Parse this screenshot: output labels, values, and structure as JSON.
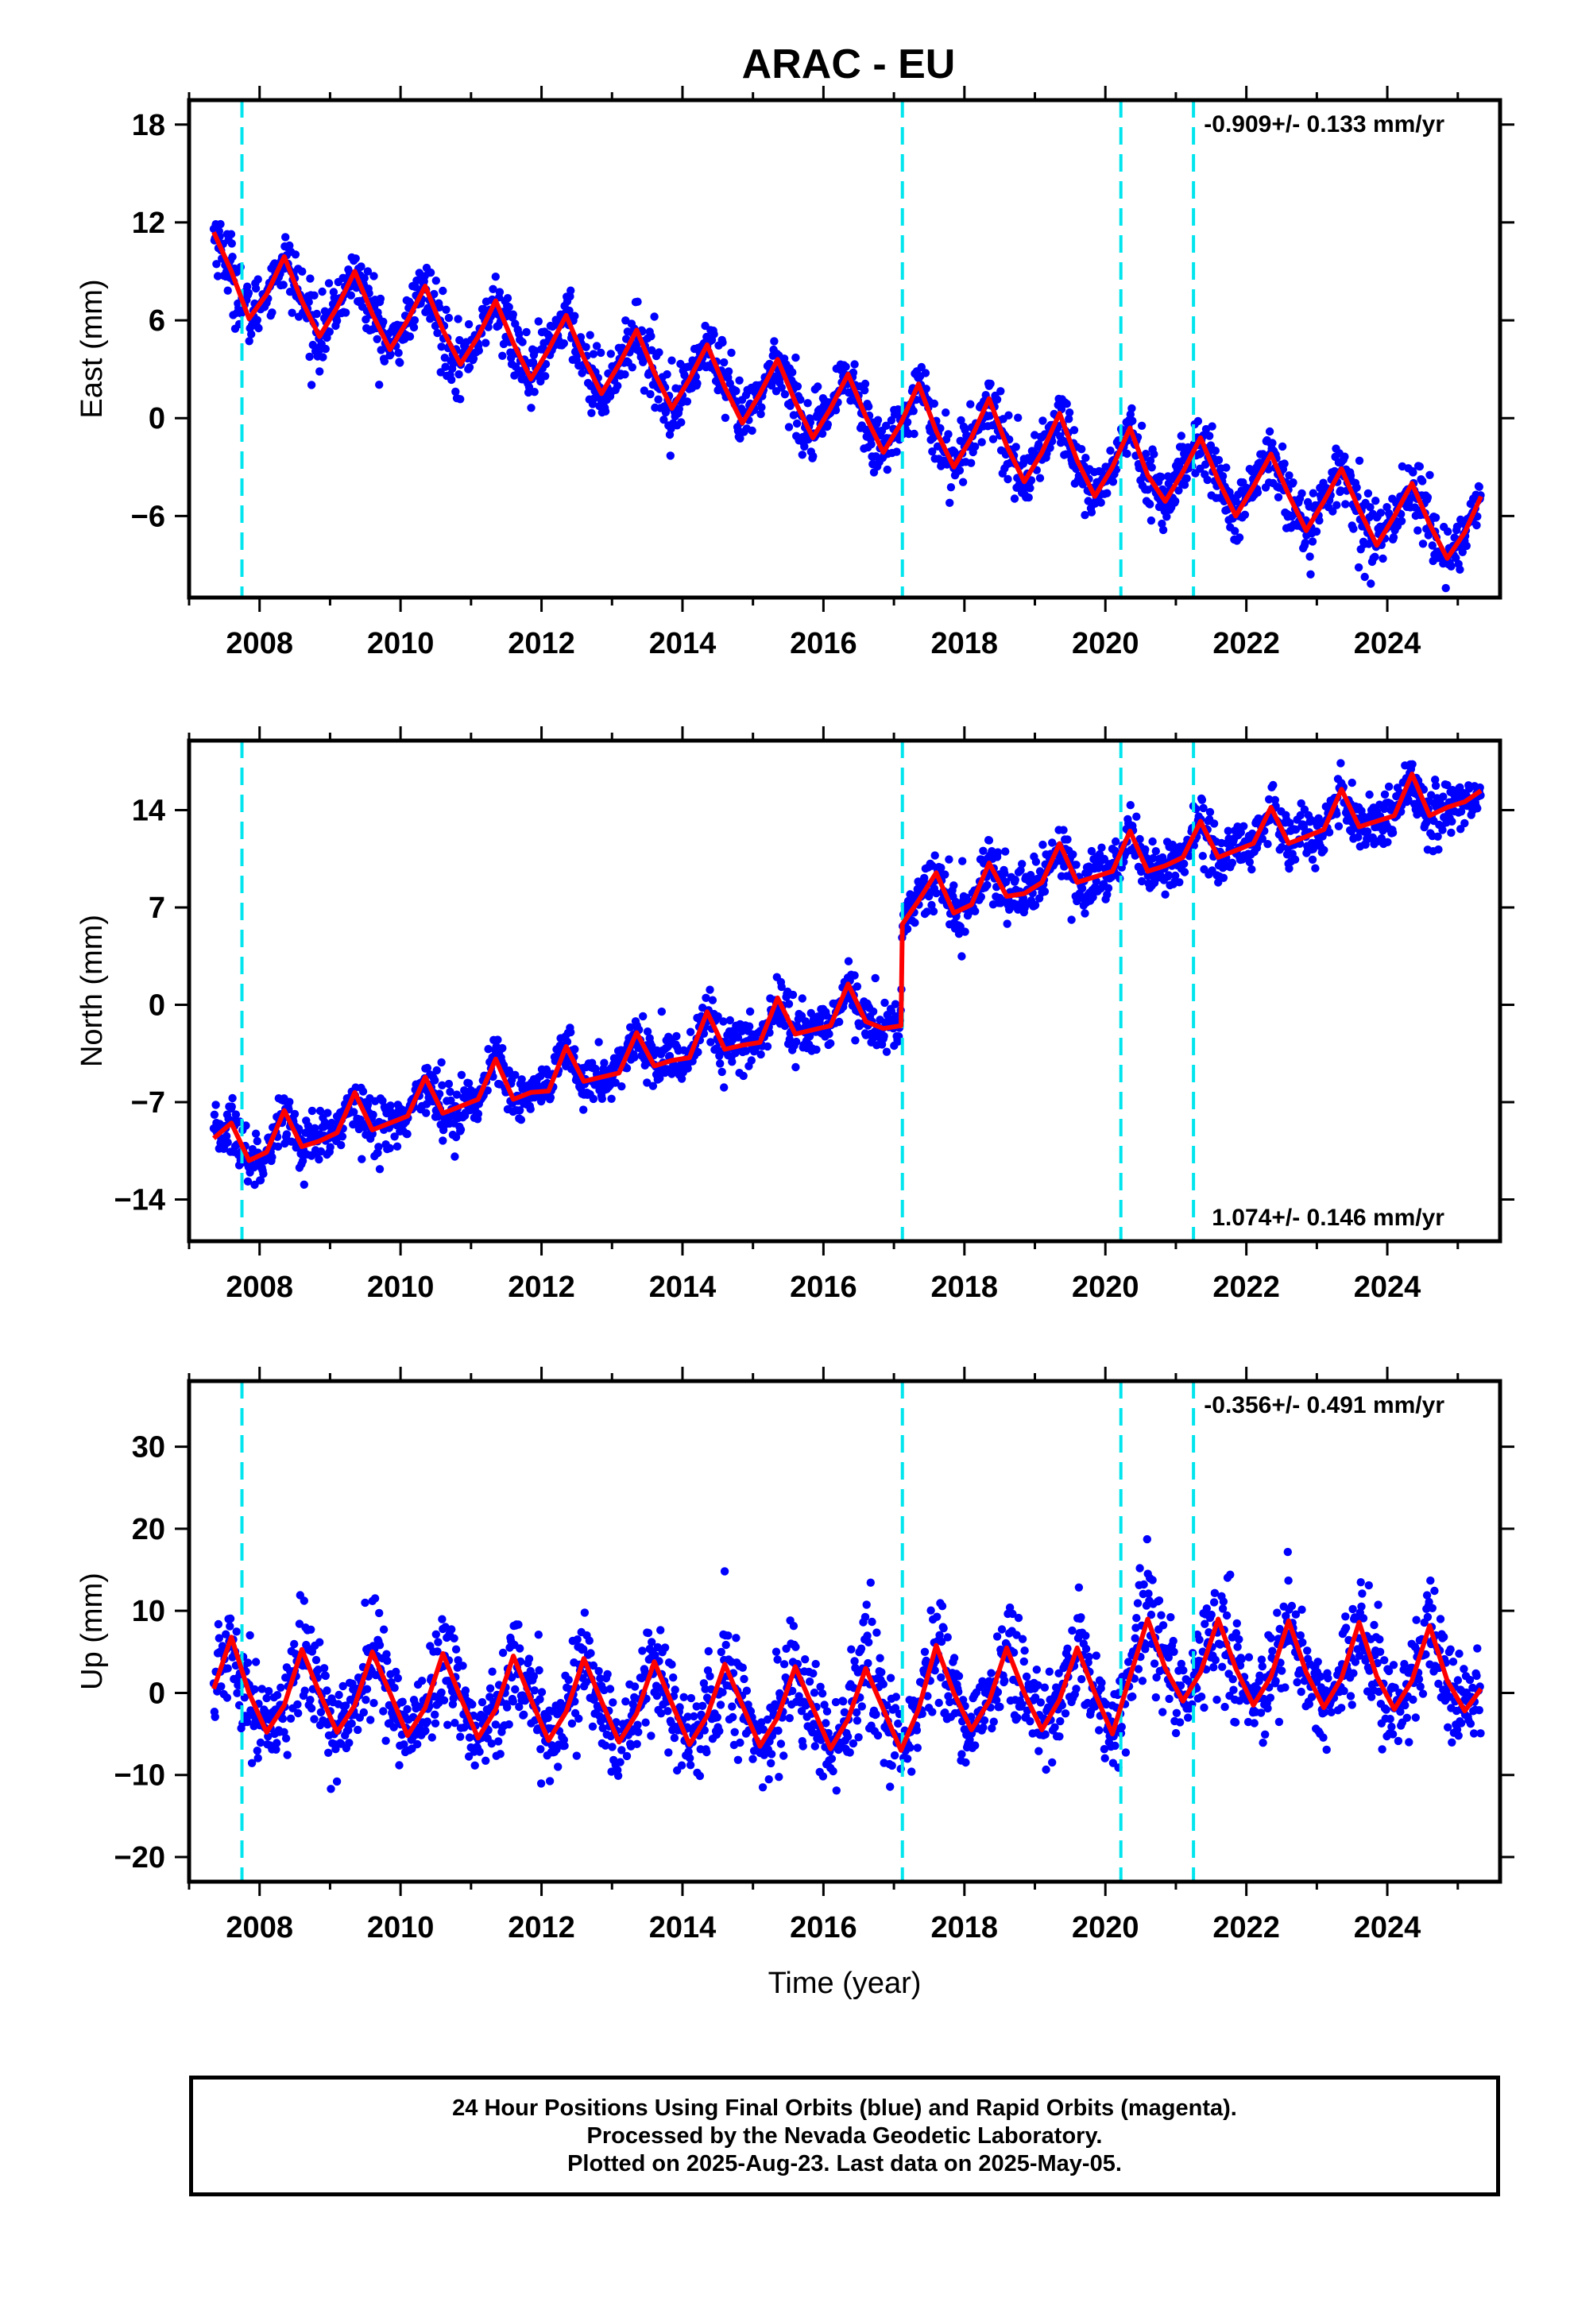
{
  "title": "ARAC - EU",
  "footer": {
    "line1": "24 Hour Positions Using Final Orbits (blue) and Rapid Orbits (magenta).",
    "line2": "Processed by the Nevada Geodetic Laboratory.",
    "line3": "Plotted on 2025-Aug-23. Last data on 2025-May-05."
  },
  "colors": {
    "final_orbits": "#0000ff",
    "rapid_orbits": "#ff00ff",
    "model_fit": "#ff0000",
    "equipment_change": "#00e5ee",
    "background": "#ffffff"
  },
  "chart_data": [
    {
      "type": "scatter",
      "component": "east",
      "title": "ARAC - EU",
      "ylabel": "East (mm)",
      "xlabel": "",
      "xlim": [
        2007.0,
        2025.6
      ],
      "ylim": [
        -11,
        19.5
      ],
      "yticks": [
        18,
        12,
        6,
        0,
        -6
      ],
      "xticks": [
        2008,
        2010,
        2012,
        2014,
        2016,
        2018,
        2020,
        2022,
        2024
      ],
      "rate_label": "-0.909+/- 0.133 mm/yr",
      "rate_position": "top-right",
      "equipment_changes": [
        2007.75,
        2017.12,
        2020.22,
        2021.25
      ],
      "series_fit": {
        "x": [
          2007.35,
          2007.6,
          2007.85,
          2008.1,
          2008.35,
          2008.6,
          2008.85,
          2009.1,
          2009.35,
          2009.6,
          2009.85,
          2010.1,
          2010.35,
          2010.6,
          2010.85,
          2011.1,
          2011.35,
          2011.6,
          2011.85,
          2012.1,
          2012.35,
          2012.6,
          2012.85,
          2013.1,
          2013.35,
          2013.6,
          2013.85,
          2014.1,
          2014.35,
          2014.6,
          2014.85,
          2015.1,
          2015.35,
          2015.6,
          2015.85,
          2016.1,
          2016.35,
          2016.6,
          2016.85,
          2017.1,
          2017.35,
          2017.6,
          2017.85,
          2018.1,
          2018.35,
          2018.6,
          2018.85,
          2019.1,
          2019.35,
          2019.6,
          2019.85,
          2020.1,
          2020.35,
          2020.6,
          2020.85,
          2021.1,
          2021.35,
          2021.6,
          2021.85,
          2022.1,
          2022.35,
          2022.6,
          2022.85,
          2023.1,
          2023.35,
          2023.6,
          2023.85,
          2024.1,
          2024.35,
          2024.6,
          2024.85,
          2025.1,
          2025.33
        ],
        "y": [
          11.4,
          9.0,
          6.1,
          7.6,
          9.9,
          7.2,
          5.0,
          6.8,
          9.0,
          6.4,
          4.2,
          6.0,
          8.1,
          5.4,
          3.3,
          5.0,
          7.2,
          4.6,
          2.4,
          4.2,
          6.3,
          3.7,
          1.5,
          3.3,
          5.4,
          2.8,
          0.6,
          2.4,
          4.5,
          1.9,
          -0.3,
          1.5,
          3.6,
          1.0,
          -1.2,
          0.6,
          2.7,
          0.1,
          -2.1,
          -0.3,
          2.1,
          -0.8,
          -3.0,
          -1.2,
          1.2,
          -1.7,
          -3.9,
          -2.1,
          0.3,
          -2.6,
          -4.8,
          -3.0,
          -0.6,
          -3.5,
          -5.1,
          -3.3,
          -1.2,
          -3.8,
          -6.0,
          -4.2,
          -2.2,
          -4.7,
          -6.9,
          -5.1,
          -3.1,
          -5.6,
          -7.8,
          -6.0,
          -4.0,
          -6.5,
          -8.6,
          -7.0,
          -4.8
        ]
      }
    },
    {
      "type": "scatter",
      "component": "north",
      "title": "",
      "ylabel": "North (mm)",
      "xlabel": "",
      "xlim": [
        2007.0,
        2025.6
      ],
      "ylim": [
        -17,
        19
      ],
      "yticks": [
        14,
        7,
        0,
        -7,
        -14
      ],
      "xticks": [
        2008,
        2010,
        2012,
        2014,
        2016,
        2018,
        2020,
        2022,
        2024
      ],
      "rate_label": "1.074+/- 0.146 mm/yr",
      "rate_position": "bottom-right",
      "equipment_changes": [
        2007.75,
        2017.12,
        2020.22,
        2021.25
      ],
      "series_fit": {
        "x": [
          2007.35,
          2007.6,
          2007.85,
          2008.1,
          2008.35,
          2008.6,
          2008.85,
          2009.1,
          2009.35,
          2009.6,
          2009.85,
          2010.1,
          2010.35,
          2010.6,
          2010.85,
          2011.1,
          2011.35,
          2011.6,
          2011.85,
          2012.1,
          2012.35,
          2012.6,
          2012.85,
          2013.1,
          2013.35,
          2013.6,
          2013.85,
          2014.1,
          2014.35,
          2014.6,
          2014.85,
          2015.1,
          2015.35,
          2015.6,
          2015.85,
          2016.1,
          2016.35,
          2016.6,
          2016.85,
          2017.1,
          2017.12,
          2017.35,
          2017.6,
          2017.85,
          2018.1,
          2018.35,
          2018.6,
          2018.85,
          2019.1,
          2019.35,
          2019.6,
          2019.85,
          2020.1,
          2020.35,
          2020.6,
          2020.85,
          2021.1,
          2021.35,
          2021.6,
          2021.85,
          2022.1,
          2022.35,
          2022.6,
          2022.85,
          2023.1,
          2023.35,
          2023.6,
          2023.85,
          2024.1,
          2024.35,
          2024.6,
          2024.85,
          2025.1,
          2025.33
        ],
        "y": [
          -9.6,
          -8.5,
          -11.2,
          -10.6,
          -7.6,
          -10.2,
          -9.8,
          -9.2,
          -6.3,
          -9.0,
          -8.5,
          -8.0,
          -5.2,
          -7.8,
          -7.3,
          -6.8,
          -3.9,
          -6.8,
          -6.3,
          -6.2,
          -3.0,
          -5.5,
          -5.2,
          -4.9,
          -2.0,
          -4.4,
          -4.0,
          -3.8,
          -0.5,
          -3.2,
          -2.9,
          -2.7,
          0.5,
          -2.1,
          -1.8,
          -1.5,
          1.5,
          -1.2,
          -1.7,
          -1.5,
          5.8,
          7.5,
          9.5,
          6.6,
          7.2,
          10.2,
          7.8,
          8.0,
          8.8,
          11.6,
          8.8,
          9.2,
          9.6,
          12.5,
          9.6,
          10.0,
          10.6,
          13.2,
          10.6,
          11.1,
          11.6,
          14.2,
          11.6,
          12.1,
          12.6,
          15.5,
          12.8,
          13.2,
          13.6,
          16.6,
          13.6,
          14.2,
          14.6,
          15.4
        ]
      }
    },
    {
      "type": "scatter",
      "component": "up",
      "title": "",
      "ylabel": "Up (mm)",
      "xlabel": "Time (year)",
      "xlim": [
        2007.0,
        2025.6
      ],
      "ylim": [
        -23,
        38
      ],
      "yticks": [
        30,
        20,
        10,
        0,
        -10,
        -20
      ],
      "xticks": [
        2008,
        2010,
        2012,
        2014,
        2016,
        2018,
        2020,
        2022,
        2024
      ],
      "rate_label": "-0.356+/- 0.491 mm/yr",
      "rate_position": "top-right",
      "equipment_changes": [
        2007.75,
        2017.12,
        2020.22,
        2021.25
      ],
      "series_fit": {
        "x": [
          2007.35,
          2007.6,
          2007.85,
          2008.1,
          2008.35,
          2008.6,
          2008.85,
          2009.1,
          2009.35,
          2009.6,
          2009.85,
          2010.1,
          2010.35,
          2010.6,
          2010.85,
          2011.1,
          2011.35,
          2011.6,
          2011.85,
          2012.1,
          2012.35,
          2012.6,
          2012.85,
          2013.1,
          2013.35,
          2013.6,
          2013.85,
          2014.1,
          2014.35,
          2014.6,
          2014.85,
          2015.1,
          2015.35,
          2015.6,
          2015.85,
          2016.1,
          2016.35,
          2016.6,
          2016.85,
          2017.1,
          2017.35,
          2017.6,
          2017.85,
          2018.1,
          2018.35,
          2018.6,
          2018.85,
          2019.1,
          2019.35,
          2019.6,
          2019.85,
          2020.1,
          2020.35,
          2020.6,
          2020.85,
          2021.1,
          2021.35,
          2021.6,
          2021.85,
          2022.1,
          2022.35,
          2022.6,
          2022.85,
          2023.1,
          2023.35,
          2023.6,
          2023.85,
          2024.1,
          2024.35,
          2024.6,
          2024.85,
          2025.1,
          2025.33
        ],
        "y": [
          0.5,
          6.8,
          0.0,
          -4.8,
          -1.5,
          5.3,
          0.0,
          -4.8,
          -1.5,
          5.0,
          0.0,
          -5.2,
          -1.8,
          4.8,
          -0.5,
          -5.5,
          -2.0,
          4.5,
          -0.8,
          -5.8,
          -2.3,
          4.2,
          -1.0,
          -6.0,
          -2.5,
          3.8,
          -1.3,
          -6.3,
          -2.8,
          3.5,
          -1.5,
          -6.5,
          -3.0,
          3.2,
          -1.8,
          -6.8,
          -3.2,
          3.0,
          -2.0,
          -7.0,
          -2.0,
          5.8,
          0.0,
          -4.5,
          -1.0,
          5.5,
          0.0,
          -4.5,
          -0.8,
          5.5,
          0.0,
          -5.0,
          2.0,
          9.0,
          3.0,
          -1.0,
          2.5,
          9.0,
          3.0,
          -1.5,
          2.0,
          8.8,
          2.5,
          -1.8,
          1.8,
          8.6,
          2.0,
          -2.0,
          1.5,
          8.2,
          1.5,
          -2.2,
          0.5
        ]
      }
    }
  ]
}
